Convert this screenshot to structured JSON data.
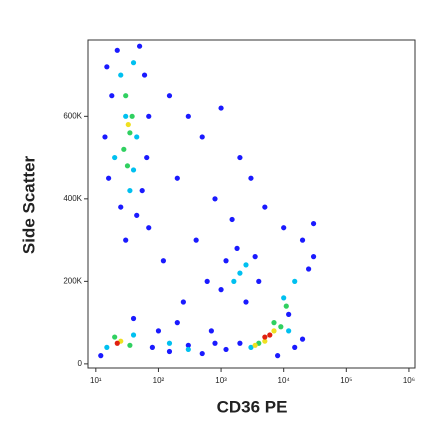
{
  "chart_data": {
    "type": "scatter",
    "x_label": "CD36 PE",
    "y_label": "Side Scatter",
    "xscale": "log",
    "xlim": [
      7.5,
      1250000
    ],
    "xticks": [
      {
        "value": 10,
        "label": "10¹"
      },
      {
        "value": 100,
        "label": "10²"
      },
      {
        "value": 1000,
        "label": "10³"
      },
      {
        "value": 10000,
        "label": "10⁴"
      },
      {
        "value": 100000,
        "label": "10⁵"
      },
      {
        "value": 1000000,
        "label": "10⁶"
      }
    ],
    "ylim": [
      -10000,
      785000
    ],
    "yticks": [
      0,
      {
        "value": 200000,
        "label": "200K"
      },
      {
        "value": 400000,
        "label": "400K"
      },
      {
        "value": 600000,
        "label": "600K"
      }
    ],
    "series": [
      {
        "color": "#1a1aff",
        "x": [
          15,
          22,
          50,
          60,
          18,
          70,
          14,
          65,
          16,
          55,
          25,
          45,
          30,
          70,
          150,
          300,
          500,
          1000,
          2000,
          3000,
          800,
          200,
          5000,
          10000,
          400,
          1500,
          120,
          600,
          250,
          20000,
          30000,
          80,
          150,
          300,
          500,
          800,
          1200,
          100,
          200,
          12,
          40,
          700,
          1200,
          1800,
          3500,
          4000,
          1000,
          2500,
          25000,
          30000,
          12000,
          2000,
          15000,
          20000,
          8000
        ],
        "y": [
          720000,
          760000,
          770000,
          700000,
          650000,
          600000,
          550000,
          500000,
          450000,
          420000,
          380000,
          360000,
          300000,
          330000,
          650000,
          600000,
          550000,
          620000,
          500000,
          450000,
          400000,
          450000,
          380000,
          330000,
          300000,
          350000,
          250000,
          200000,
          150000,
          300000,
          340000,
          40000,
          30000,
          45000,
          25000,
          50000,
          35000,
          80000,
          100000,
          20000,
          110000,
          80000,
          250000,
          280000,
          260000,
          200000,
          180000,
          150000,
          230000,
          260000,
          120000,
          50000,
          40000,
          60000,
          20000
        ]
      },
      {
        "color": "#00c0f0",
        "x": [
          25,
          40,
          30,
          45,
          20,
          35,
          40,
          15,
          40,
          2000,
          2500,
          1600,
          10000,
          15000,
          3000,
          12000,
          150,
          300
        ],
        "y": [
          700000,
          730000,
          600000,
          550000,
          500000,
          420000,
          470000,
          40000,
          70000,
          220000,
          240000,
          200000,
          160000,
          200000,
          40000,
          80000,
          50000,
          35000
        ]
      },
      {
        "color": "#30d060",
        "x": [
          30,
          35,
          28,
          38,
          32,
          20,
          35,
          4000,
          7000,
          9000,
          11000
        ],
        "y": [
          650000,
          560000,
          520000,
          600000,
          480000,
          65000,
          45000,
          50000,
          100000,
          90000,
          140000
        ]
      },
      {
        "color": "#f0e020",
        "x": [
          33,
          25,
          5000,
          7000,
          3500
        ],
        "y": [
          580000,
          55000,
          55000,
          80000,
          45000
        ]
      },
      {
        "color": "#e02010",
        "x": [
          22,
          5000,
          6000
        ],
        "y": [
          50000,
          65000,
          70000
        ]
      }
    ]
  }
}
